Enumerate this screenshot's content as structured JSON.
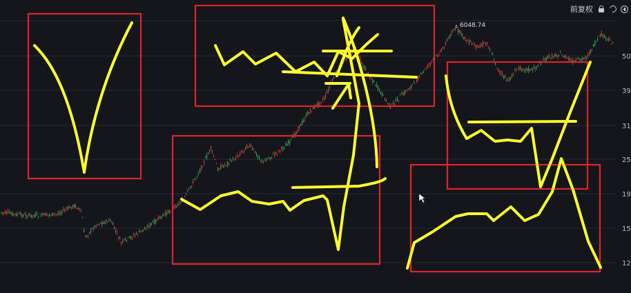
{
  "toolbar": {
    "adjust_label": "前复权",
    "lock_icon": "lock-icon",
    "undo_icon": "undo-icon",
    "add_icon": "plus-circle-icon"
  },
  "chart_data": {
    "type": "candlestick",
    "y_ticks": [
      "50",
      "39",
      "31",
      "25",
      "19",
      "15",
      "12"
    ],
    "peak_label": "6048.74",
    "colors": {
      "up": "#e0413a",
      "down": "#2fae5c",
      "grid": "#262a33",
      "tick": "#b8bcc6",
      "annotation": "#ffff2e",
      "box": "#e0242a"
    }
  }
}
